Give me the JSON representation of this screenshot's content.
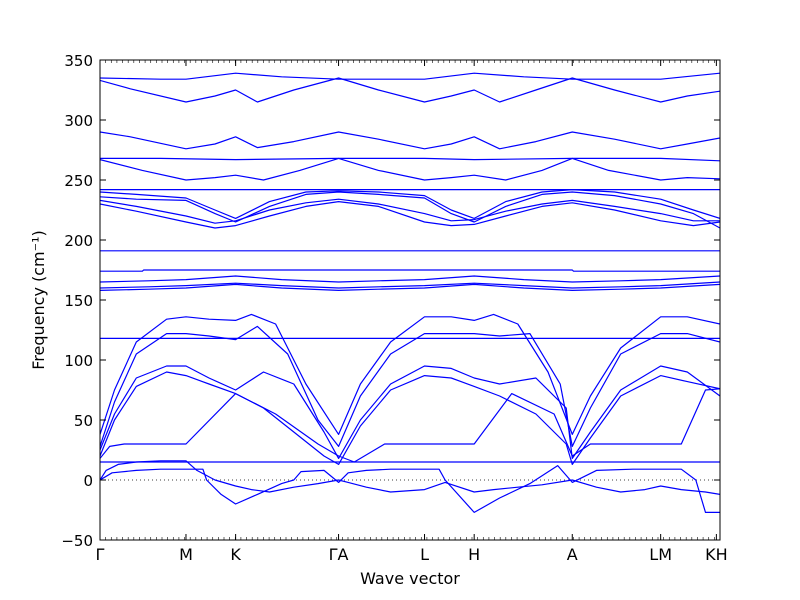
{
  "chart_data": {
    "type": "line",
    "title": "",
    "xlabel": "Wave vector",
    "ylabel": "Frequency (cm⁻¹)",
    "ylim": [
      -50,
      350
    ],
    "yticks": [
      -50,
      0,
      50,
      100,
      150,
      200,
      250,
      300,
      350
    ],
    "xlim": [
      0,
      5.12
    ],
    "xticks": [
      {
        "label": "Γ",
        "x": 0.0
      },
      {
        "label": "M",
        "x": 0.71
      },
      {
        "label": "K",
        "x": 1.12
      },
      {
        "label": "ΓA",
        "x": 1.97
      },
      {
        "label": "L",
        "x": 2.68
      },
      {
        "label": "H",
        "x": 3.09
      },
      {
        "label": "A",
        "x": 3.9
      },
      {
        "label": "LM",
        "x": 4.63
      },
      {
        "label": "KH",
        "x": 5.09
      }
    ],
    "zero_line": {
      "y": 0,
      "style": "dotted"
    },
    "series_color": "#0000ff",
    "series": [
      {
        "x": [
          0,
          0.05,
          0.15,
          0.3,
          0.5,
          0.71,
          0.8,
          0.95,
          1.12,
          1.25,
          1.4,
          1.6,
          1.8,
          1.97,
          2.05,
          2.2,
          2.4,
          2.68,
          2.85,
          3.09,
          3.25,
          3.45,
          3.65,
          3.9,
          4.1,
          4.3,
          4.5,
          4.63,
          4.8,
          5.0,
          5.12
        ],
        "y": [
          0,
          8,
          13,
          15,
          16,
          16,
          8,
          0,
          -5,
          -8,
          -10,
          -6,
          -3,
          0,
          -2,
          -6,
          -10,
          -8,
          -2,
          -10,
          -8,
          -6,
          -4,
          0,
          -6,
          -10,
          -8,
          -5,
          -8,
          -10,
          -12
        ]
      },
      {
        "x": [
          0,
          0.1,
          0.3,
          0.5,
          0.71,
          0.85,
          0.88,
          1.0,
          1.12,
          1.3,
          1.5,
          1.6,
          1.66,
          1.85,
          1.97,
          2.05,
          2.2,
          2.4,
          2.6,
          2.68,
          2.8,
          2.85,
          3.09,
          3.3,
          3.55,
          3.78,
          3.9,
          4.1,
          4.4,
          4.63,
          4.8,
          4.92,
          5.0,
          5.12
        ],
        "y": [
          0,
          6,
          8,
          9,
          9,
          9,
          0,
          -12,
          -20,
          -12,
          -3,
          0,
          7,
          8,
          -2,
          6,
          8,
          9,
          9,
          9,
          9,
          0,
          -27,
          -15,
          -3,
          12,
          -2,
          8,
          9,
          9,
          9,
          0,
          -27,
          -27
        ]
      },
      {
        "x": [
          0,
          0.3,
          0.71,
          1.12,
          1.5,
          1.97,
          2.3,
          2.68,
          3.09,
          3.5,
          3.9,
          4.3,
          4.63,
          5.12
        ],
        "y": [
          15,
          15,
          15,
          15,
          15,
          15,
          15,
          15,
          15,
          15,
          15,
          15,
          15,
          15
        ]
      },
      {
        "x": [
          0,
          0.08,
          0.2,
          0.4,
          0.71,
          1.12,
          1.45,
          1.8,
          1.97,
          2.1,
          2.35,
          2.68,
          3.09,
          3.4,
          3.75,
          3.9,
          4.05,
          4.3,
          4.63,
          4.8,
          5.0,
          5.12
        ],
        "y": [
          18,
          28,
          30,
          30,
          30,
          72,
          55,
          30,
          20,
          15,
          30,
          30,
          30,
          72,
          55,
          20,
          30,
          30,
          30,
          30,
          75,
          76
        ]
      },
      {
        "x": [
          0,
          0.12,
          0.3,
          0.55,
          0.71,
          0.9,
          1.12,
          1.35,
          1.6,
          1.85,
          1.97,
          2.15,
          2.4,
          2.68,
          2.9,
          3.09,
          3.3,
          3.6,
          3.85,
          3.9,
          4.05,
          4.3,
          4.63,
          4.85,
          5.12
        ],
        "y": [
          20,
          50,
          78,
          90,
          87,
          80,
          72,
          60,
          40,
          20,
          13,
          45,
          75,
          87,
          85,
          78,
          70,
          55,
          30,
          13,
          35,
          70,
          87,
          82,
          76
        ]
      },
      {
        "x": [
          0,
          0.12,
          0.3,
          0.55,
          0.71,
          0.9,
          1.12,
          1.35,
          1.6,
          1.85,
          1.97,
          2.15,
          2.4,
          2.68,
          2.9,
          3.09,
          3.3,
          3.6,
          3.85,
          3.9,
          4.05,
          4.3,
          4.63,
          4.85,
          5.12
        ],
        "y": [
          25,
          55,
          85,
          95,
          95,
          85,
          75,
          90,
          80,
          40,
          18,
          50,
          80,
          95,
          93,
          85,
          80,
          85,
          60,
          18,
          40,
          75,
          95,
          90,
          70
        ]
      },
      {
        "x": [
          0,
          0.12,
          0.3,
          0.55,
          0.71,
          0.9,
          1.12,
          1.3,
          1.55,
          1.8,
          1.97,
          2.15,
          2.4,
          2.68,
          2.9,
          3.09,
          3.3,
          3.55,
          3.8,
          3.9,
          4.05,
          4.3,
          4.63,
          4.85,
          5.12
        ],
        "y": [
          28,
          65,
          105,
          122,
          122,
          120,
          117,
          128,
          105,
          50,
          28,
          70,
          105,
          122,
          122,
          122,
          120,
          122,
          80,
          28,
          60,
          105,
          122,
          122,
          115
        ]
      },
      {
        "x": [
          0,
          0.12,
          0.3,
          0.55,
          0.71,
          0.9,
          1.12,
          1.25,
          1.45,
          1.7,
          1.97,
          2.15,
          2.4,
          2.68,
          2.9,
          3.09,
          3.25,
          3.45,
          3.7,
          3.9,
          4.05,
          4.3,
          4.63,
          4.85,
          5.12
        ],
        "y": [
          38,
          75,
          115,
          134,
          136,
          134,
          133,
          138,
          130,
          80,
          38,
          80,
          115,
          136,
          136,
          133,
          138,
          130,
          90,
          38,
          70,
          110,
          136,
          136,
          130
        ]
      },
      {
        "x": [
          0,
          0.71,
          1.12,
          1.97,
          2.68,
          3.09,
          3.9,
          4.63,
          5.12
        ],
        "y": [
          118,
          118,
          118,
          118,
          118,
          118,
          118,
          118,
          118
        ]
      },
      {
        "x": [
          0,
          0.4,
          0.71,
          1.12,
          1.5,
          1.97,
          2.3,
          2.68,
          3.09,
          3.5,
          3.9,
          4.3,
          4.63,
          5.12
        ],
        "y": [
          158,
          159,
          160,
          163,
          160,
          158,
          159,
          160,
          163,
          160,
          158,
          159,
          160,
          163
        ]
      },
      {
        "x": [
          0,
          0.4,
          0.71,
          1.12,
          1.5,
          1.97,
          2.3,
          2.68,
          3.09,
          3.5,
          3.9,
          4.3,
          4.63,
          5.12
        ],
        "y": [
          160,
          161,
          162,
          164,
          162,
          160,
          161,
          162,
          164,
          162,
          160,
          161,
          162,
          165
        ]
      },
      {
        "x": [
          0,
          0.4,
          0.71,
          1.12,
          1.5,
          1.97,
          2.3,
          2.68,
          3.09,
          3.5,
          3.9,
          4.3,
          4.63,
          5.12
        ],
        "y": [
          165,
          166,
          167,
          170,
          167,
          165,
          166,
          167,
          170,
          167,
          165,
          166,
          167,
          170
        ]
      },
      {
        "x": [
          0,
          0.35,
          0.36,
          1.97,
          3.9,
          3.91,
          5.12
        ],
        "y": [
          174,
          174,
          175,
          175,
          175,
          174,
          174
        ]
      },
      {
        "x": [
          0,
          1.97,
          3.9,
          5.12
        ],
        "y": [
          191,
          191,
          191,
          191
        ]
      },
      {
        "x": [
          0,
          0.3,
          0.71,
          0.95,
          1.12,
          1.4,
          1.7,
          1.97,
          2.3,
          2.68,
          2.9,
          3.09,
          3.35,
          3.65,
          3.9,
          4.25,
          4.63,
          4.9,
          5.12
        ],
        "y": [
          230,
          224,
          215,
          210,
          212,
          220,
          228,
          232,
          228,
          215,
          212,
          213,
          220,
          228,
          231,
          225,
          216,
          212,
          215
        ]
      },
      {
        "x": [
          0,
          0.3,
          0.71,
          0.95,
          1.12,
          1.4,
          1.7,
          1.97,
          2.3,
          2.68,
          2.9,
          3.09,
          3.35,
          3.65,
          3.9,
          4.25,
          4.63,
          4.9,
          5.12
        ],
        "y": [
          233,
          228,
          220,
          214,
          216,
          225,
          231,
          234,
          230,
          222,
          216,
          217,
          224,
          230,
          233,
          228,
          222,
          216,
          216
        ]
      },
      {
        "x": [
          0,
          0.3,
          0.71,
          0.95,
          1.12,
          1.4,
          1.7,
          1.97,
          2.3,
          2.68,
          2.9,
          3.09,
          3.35,
          3.65,
          3.9,
          4.25,
          4.63,
          4.9,
          5.12
        ],
        "y": [
          236,
          234,
          233,
          222,
          215,
          228,
          238,
          240,
          238,
          235,
          222,
          215,
          228,
          238,
          240,
          237,
          230,
          222,
          210
        ]
      },
      {
        "x": [
          0,
          0.3,
          0.71,
          0.95,
          1.12,
          1.4,
          1.7,
          1.97,
          2.3,
          2.68,
          2.9,
          3.09,
          3.35,
          3.65,
          3.9,
          4.25,
          4.63,
          4.9,
          5.12
        ],
        "y": [
          240,
          238,
          235,
          225,
          218,
          232,
          240,
          241,
          240,
          237,
          225,
          218,
          232,
          240,
          242,
          240,
          234,
          225,
          218
        ]
      },
      {
        "x": [
          0,
          1.97,
          3.9,
          5.12
        ],
        "y": [
          242,
          242,
          242,
          242
        ]
      },
      {
        "x": [
          0,
          0.35,
          0.71,
          0.95,
          1.12,
          1.35,
          1.65,
          1.97,
          2.3,
          2.68,
          2.9,
          3.09,
          3.35,
          3.65,
          3.9,
          4.2,
          4.63,
          4.85,
          5.12
        ],
        "y": [
          267,
          258,
          250,
          252,
          254,
          250,
          258,
          268,
          258,
          250,
          252,
          254,
          250,
          258,
          268,
          258,
          250,
          252,
          251
        ]
      },
      {
        "x": [
          0,
          0.5,
          1.12,
          1.97,
          2.68,
          3.09,
          3.9,
          4.63,
          5.12
        ],
        "y": [
          268,
          268,
          267,
          268,
          268,
          267,
          268,
          268,
          266
        ]
      },
      {
        "x": [
          0,
          0.25,
          0.71,
          0.95,
          1.12,
          1.3,
          1.6,
          1.97,
          2.3,
          2.68,
          2.9,
          3.09,
          3.3,
          3.6,
          3.9,
          4.25,
          4.63,
          4.85,
          5.12
        ],
        "y": [
          290,
          286,
          276,
          280,
          286,
          277,
          282,
          290,
          284,
          276,
          280,
          286,
          276,
          282,
          290,
          284,
          276,
          280,
          285
        ]
      },
      {
        "x": [
          0,
          0.25,
          0.71,
          0.95,
          1.12,
          1.3,
          1.6,
          1.97,
          2.3,
          2.68,
          2.9,
          3.09,
          3.3,
          3.6,
          3.9,
          4.25,
          4.63,
          4.85,
          5.12
        ],
        "y": [
          333,
          326,
          315,
          320,
          325,
          315,
          325,
          335,
          325,
          315,
          320,
          325,
          315,
          325,
          335,
          325,
          315,
          320,
          324
        ]
      },
      {
        "x": [
          0,
          0.5,
          0.71,
          1.12,
          1.5,
          1.97,
          2.3,
          2.68,
          3.09,
          3.5,
          3.9,
          4.3,
          4.63,
          5.12
        ],
        "y": [
          335,
          334,
          334,
          339,
          336,
          334,
          334,
          334,
          339,
          336,
          334,
          334,
          334,
          339
        ]
      }
    ]
  }
}
